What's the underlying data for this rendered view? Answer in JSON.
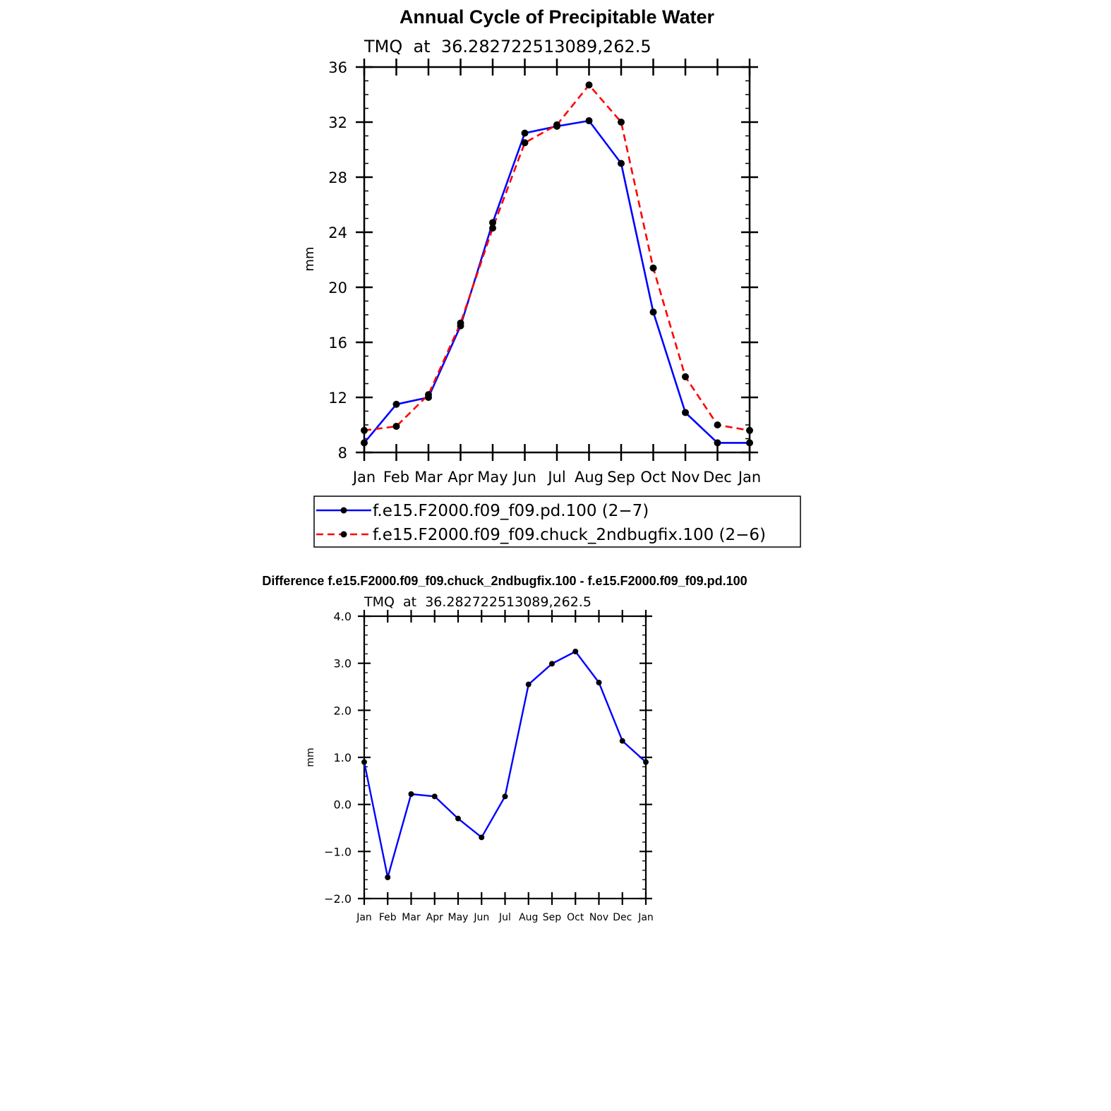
{
  "chart_data": [
    {
      "type": "line",
      "title": "Annual Cycle of Precipitable Water",
      "subtitle": "TMQ  at  36.282722513089,262.5",
      "xlabel": "",
      "ylabel": "mm",
      "categories": [
        "Jan",
        "Feb",
        "Mar",
        "Apr",
        "May",
        "Jun",
        "Jul",
        "Aug",
        "Sep",
        "Oct",
        "Nov",
        "Dec",
        "Jan"
      ],
      "ylim": [
        8,
        36
      ],
      "yticks": [
        "8",
        "12",
        "16",
        "20",
        "24",
        "28",
        "32",
        "36"
      ],
      "series": [
        {
          "name": "f.e15.F2000.f09_f09.pd.100 (2−7)",
          "color": "#0000ff",
          "dashed": false,
          "values": [
            8.7,
            11.5,
            12.0,
            17.2,
            24.7,
            31.2,
            31.7,
            32.1,
            29.0,
            18.2,
            10.9,
            8.7,
            8.7
          ]
        },
        {
          "name": "f.e15.F2000.f09_f09.chuck_2ndbugfix.100 (2−6)",
          "color": "#ff0000",
          "dashed": true,
          "values": [
            9.6,
            9.9,
            12.2,
            17.4,
            24.3,
            30.5,
            31.8,
            34.7,
            32.0,
            21.4,
            13.5,
            10.0,
            9.6
          ]
        }
      ]
    },
    {
      "type": "line",
      "title": "Difference f.e15.F2000.f09_f09.chuck_2ndbugfix.100 - f.e15.F2000.f09_f09.pd.100",
      "subtitle": "TMQ  at  36.282722513089,262.5",
      "xlabel": "",
      "ylabel": "mm",
      "categories": [
        "Jan",
        "Feb",
        "Mar",
        "Apr",
        "May",
        "Jun",
        "Jul",
        "Aug",
        "Sep",
        "Oct",
        "Nov",
        "Dec",
        "Jan"
      ],
      "ylim": [
        -2.0,
        4.0
      ],
      "yticks": [
        "−2.0",
        "−1.0",
        "0.0",
        "1.0",
        "2.0",
        "3.0",
        "4.0"
      ],
      "series": [
        {
          "name": "Difference",
          "color": "#0000ff",
          "dashed": false,
          "values": [
            0.9,
            -1.55,
            0.22,
            0.17,
            -0.3,
            -0.7,
            0.17,
            2.55,
            2.99,
            3.25,
            2.59,
            1.35,
            0.9
          ]
        }
      ]
    }
  ]
}
